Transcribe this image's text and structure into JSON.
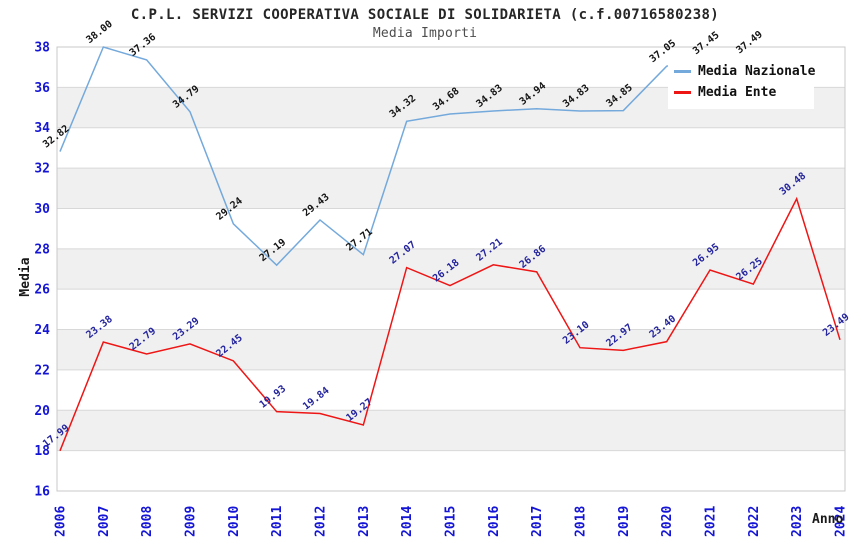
{
  "page": {
    "background": "#ffffff"
  },
  "chart_data": {
    "type": "line",
    "title": "C.P.L. SERVIZI COOPERATIVA SOCIALE DI SOLIDARIETA (c.f.00716580238)",
    "subtitle": "Media Importi",
    "xlabel": "Anno",
    "ylabel": "Media",
    "ylim": [
      16,
      38
    ],
    "ytick_step": 2,
    "grid": "horizontal gridlines with alternating light-gray bands",
    "legend_position": "top-right-overlay",
    "categories": [
      "2006",
      "2007",
      "2008",
      "2009",
      "2010",
      "2011",
      "2012",
      "2013",
      "2014",
      "2015",
      "2016",
      "2017",
      "2018",
      "2019",
      "2020",
      "2021",
      "2022",
      "2023",
      "2024"
    ],
    "series": [
      {
        "name": "Media Nazionale",
        "color": "#74a9dc",
        "label_color": "#141414",
        "values": [
          32.82,
          38.0,
          37.36,
          34.79,
          29.24,
          27.19,
          29.43,
          27.71,
          34.32,
          34.68,
          34.83,
          34.94,
          34.83,
          34.85,
          37.05,
          37.45,
          37.49,
          null,
          null
        ]
      },
      {
        "name": "Media Ente",
        "color": "#ee1515",
        "label_color": "#24249e",
        "values": [
          17.99,
          23.38,
          22.79,
          23.29,
          22.45,
          19.93,
          19.84,
          19.27,
          27.07,
          26.18,
          27.21,
          26.86,
          23.1,
          22.97,
          23.4,
          26.95,
          26.25,
          30.48,
          23.49
        ]
      }
    ],
    "colors": {
      "band": "#f0f0f0",
      "gridline": "#d8d8d8",
      "plot_border": "#c9c9c9",
      "tick_label": "#1515d6"
    }
  }
}
